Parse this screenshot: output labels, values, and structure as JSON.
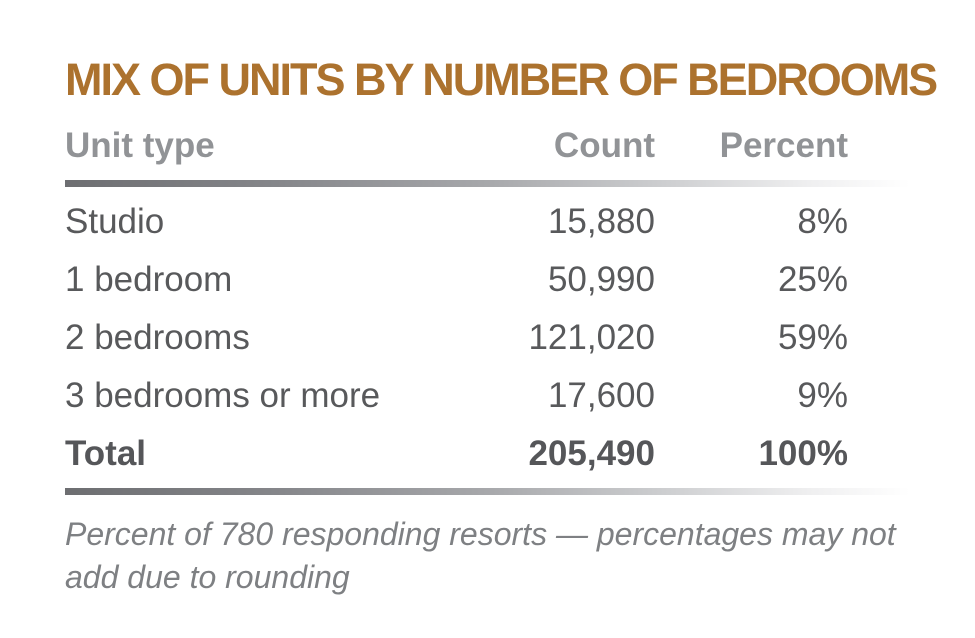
{
  "title": "MIX OF UNITS BY NUMBER OF BEDROOMS",
  "columns": {
    "unit_type": "Unit type",
    "count": "Count",
    "percent": "Percent"
  },
  "rows": [
    {
      "type": "Studio",
      "count": "15,880",
      "percent": "8%"
    },
    {
      "type": "1 bedroom",
      "count": "50,990",
      "percent": "25%"
    },
    {
      "type": "2 bedrooms",
      "count": "121,020",
      "percent": "59%"
    },
    {
      "type": "3 bedrooms or more",
      "count": "17,600",
      "percent": "9%"
    }
  ],
  "total_row": {
    "type": "Total",
    "count": "205,490",
    "percent": "100%"
  },
  "footnote": "Percent of 780 responding resorts — percentages may not add due to rounding",
  "colors": {
    "title_gold": "#AC722E",
    "header_gray": "#919396",
    "body_gray": "#58595B",
    "footnote_gray": "#7E8083",
    "divider_dark_end": "#6D6E71"
  },
  "chart_data": {
    "type": "table",
    "title": "MIX OF UNITS BY NUMBER OF BEDROOMS",
    "columns": [
      "Unit type",
      "Count",
      "Percent"
    ],
    "categories": [
      "Studio",
      "1 bedroom",
      "2 bedrooms",
      "3 bedrooms or more"
    ],
    "series": [
      {
        "name": "Count",
        "values": [
          15880,
          50990,
          121020,
          17600
        ]
      },
      {
        "name": "Percent",
        "values": [
          8,
          25,
          59,
          9
        ]
      }
    ],
    "total": {
      "label": "Total",
      "count": 205490,
      "percent": 100
    },
    "note": "Percent of 780 responding resorts — percentages may not add due to rounding"
  }
}
